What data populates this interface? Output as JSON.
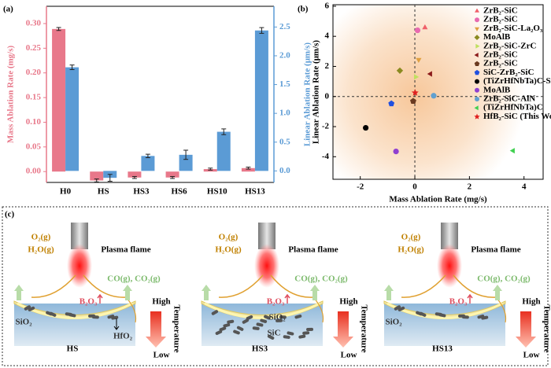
{
  "chart_data": [
    {
      "type": "bar",
      "panel_label": "(a)",
      "categories": [
        "H0",
        "HS",
        "HS3",
        "HS6",
        "HS10",
        "HS13"
      ],
      "ylabel": "Mass Ablation Rate (mg/s)",
      "y2label": "Linear Ablation Rate (μm/s)",
      "ylim": [
        -0.022,
        0.335
      ],
      "yticks": [
        {
          "value": 0,
          "label": "0.00"
        },
        0.05,
        {
          "value": 0.1,
          "label": "0.10"
        },
        0.15,
        {
          "value": 0.2,
          "label": "0.20"
        },
        0.25,
        {
          "value": 0.3,
          "label": "0.30"
        }
      ],
      "y2lim": [
        -0.2,
        2.86
      ],
      "y2ticks": [
        {
          "value": 0,
          "label": "0.0"
        },
        0.5,
        {
          "value": 1,
          "label": "1.0"
        },
        1.5,
        {
          "value": 2,
          "label": "2.0"
        },
        2.5
      ],
      "series": [
        {
          "color": "#e8788a",
          "values": [
            0.289,
            -0.018,
            -0.012,
            -0.012,
            0.005,
            0.007
          ],
          "errors": [
            0.003,
            0.003,
            0.002,
            0.002,
            0.002,
            0.002
          ]
        },
        {
          "color": "#5b9bd5",
          "axis": "y2",
          "values": [
            1.8,
            -0.12,
            0.26,
            0.28,
            0.68,
            2.44
          ],
          "errors": [
            0.04,
            0.06,
            0.03,
            0.08,
            0.05,
            0.05
          ]
        }
      ]
    },
    {
      "type": "scatter",
      "panel_label": "(b)",
      "xlabel": "Mass Ablation Rate (mg/s)",
      "ylabel": "Linear Ablation Rate (μm/s)",
      "xlim": [
        -3,
        4.7
      ],
      "ylim": [
        -5.5,
        6.1
      ],
      "xticks": [
        -2,
        0,
        2,
        4
      ],
      "yticks": [
        -4,
        -2,
        0,
        2,
        4,
        6
      ],
      "series": [
        {
          "name": "ZrB₂-SiC",
          "color": "#f0606a",
          "marker": "triangle-up",
          "x": [
            0.37
          ],
          "values": [
            4.58
          ]
        },
        {
          "name": "ZrB₂-SiC",
          "color": "#e86ab0",
          "marker": "circle",
          "x": [
            0.1
          ],
          "values": [
            4.4
          ]
        },
        {
          "name": "ZrB₂-SiC-La₂O₃",
          "color": "#e0a040",
          "marker": "triangle-down",
          "x": [
            0.14
          ],
          "values": [
            2.45
          ]
        },
        {
          "name": "MoAlB",
          "color": "#8a8a20",
          "marker": "diamond",
          "x": [
            -0.55
          ],
          "values": [
            1.72
          ]
        },
        {
          "name": "ZrB₂-SiC-ZrC",
          "color": "#c0e060",
          "marker": "triangle-right",
          "x": [
            0.03
          ],
          "values": [
            1.3
          ]
        },
        {
          "name": "ZrB₂-SiC",
          "color": "#8b1a1a",
          "marker": "triangle-left",
          "x": [
            0.57
          ],
          "values": [
            1.5
          ]
        },
        {
          "name": "ZrB₂-SiC",
          "color": "#6b3a20",
          "marker": "pentagon",
          "x": [
            -0.06
          ],
          "values": [
            -0.31
          ]
        },
        {
          "name": "SiC-ZrB₂-SiC",
          "color": "#2050e0",
          "marker": "pentagon",
          "x": [
            -0.86
          ],
          "values": [
            -0.47
          ]
        },
        {
          "name": "(TiZrHfNbTa)C-SiC",
          "color": "#000000",
          "marker": "circle",
          "x": [
            -1.8
          ],
          "values": [
            -2.08
          ]
        },
        {
          "name": "MoAlB",
          "color": "#9040d0",
          "marker": "circle",
          "x": [
            -0.69
          ],
          "values": [
            -3.65
          ]
        },
        {
          "name": "ZrB₂-SiC-AlN",
          "color": "#60a0d0",
          "marker": "circle",
          "x": [
            0.69
          ],
          "values": [
            0.05
          ]
        },
        {
          "name": "(TiZrHfNbTa)C",
          "color": "#40d050",
          "marker": "triangle-left",
          "x": [
            3.6
          ],
          "values": [
            -3.6
          ]
        },
        {
          "name": "HfB₂-SiC (This Work)",
          "color": "#e02020",
          "marker": "star",
          "x": [
            0.01
          ],
          "values": [
            0.25
          ]
        }
      ]
    }
  ],
  "diagram": {
    "label": "(c)",
    "panels": [
      {
        "title": "HS",
        "oxidants": [
          "O₂(g)",
          "H₂O(g)"
        ],
        "flame": "Plasma flame",
        "gases": "CO(g), CO₂(g)",
        "b2o3": "B₂O₃",
        "high": "High",
        "low": "Low",
        "temperature": "Temperature",
        "labels": [
          "SiO₂",
          "HfO₂"
        ]
      },
      {
        "title": "HS3",
        "oxidants": [
          "O₂(g)",
          "H₂O(g)"
        ],
        "flame": "Plasma flame",
        "gases": "CO(g), CO₂(g)",
        "b2o3": "B₂O₃",
        "high": "High",
        "low": "Low",
        "temperature": "Temperature",
        "labels": [
          "SiO₂",
          "SiC"
        ]
      },
      {
        "title": "HS13",
        "oxidants": [
          "O₂(g)",
          "H₂O(g)"
        ],
        "flame": "Plasma flame",
        "gases": "CO(g), CO₂(g)",
        "b2o3": "B₂O₃",
        "high": "High",
        "low": "Low",
        "temperature": "Temperature",
        "labels": [
          "SiO₂"
        ]
      }
    ]
  }
}
